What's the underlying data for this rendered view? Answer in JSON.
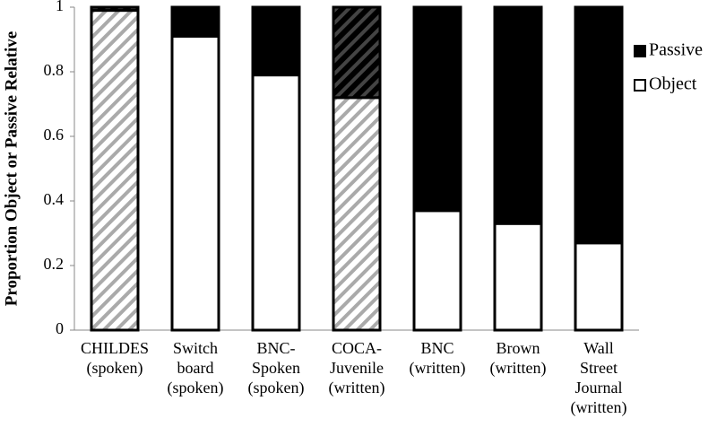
{
  "chart_data": {
    "type": "stacked_bar",
    "y_label": "Proportion Object or Passive Relative",
    "categories": [
      "CHILDES\n(spoken)",
      "Switch\nboard\n(spoken)",
      "BNC-\nSpoken\n(spoken)",
      "COCA-\nJuvenile\n(written)",
      "BNC\n(written)",
      "Brown\n(written)",
      "Wall\nStreet\nJournal\n(written)"
    ],
    "series": [
      {
        "name": "Object",
        "color": "#ffffff",
        "values": [
          0.99,
          0.91,
          0.79,
          0.72,
          0.37,
          0.33,
          0.27
        ]
      },
      {
        "name": "Passive",
        "color": "#000000",
        "values": [
          0.01,
          0.09,
          0.21,
          0.28,
          0.63,
          0.67,
          0.73
        ]
      }
    ],
    "hatched": [
      true,
      false,
      false,
      true,
      false,
      false,
      false
    ],
    "ylim": [
      0,
      1
    ],
    "yticks": [
      0,
      0.2,
      0.4,
      0.6,
      0.8,
      1
    ],
    "legend": "top-right"
  }
}
